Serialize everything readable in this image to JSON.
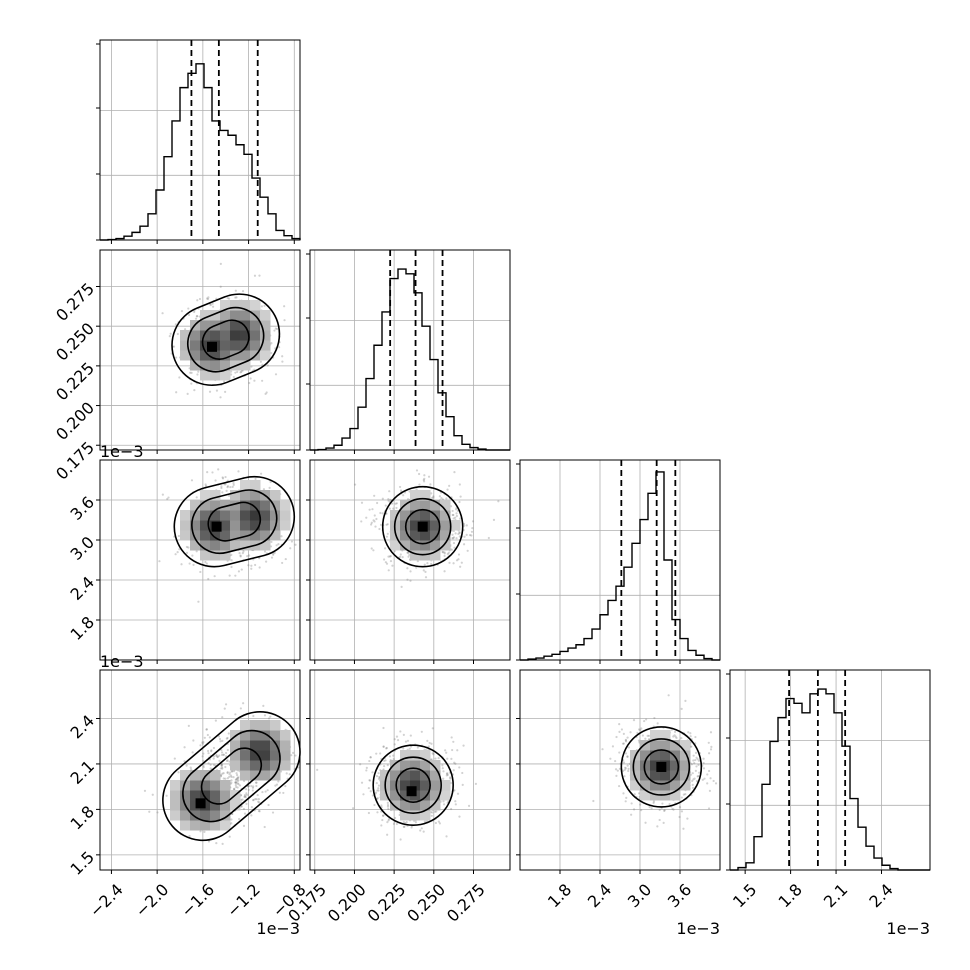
{
  "chart_data": {
    "type": "corner",
    "grid": true,
    "colors": {
      "frame": "#000000",
      "grid": "#b0b0b0",
      "points": "#7f7f7f",
      "line": "#000000"
    },
    "variables": [
      {
        "range": [
          -2.5,
          -0.75
        ],
        "ticks": [
          -2.4,
          -2.0,
          -1.6,
          -1.2,
          -0.8
        ],
        "tick_labels": [
          "−2.4",
          "−2.0",
          "−1.6",
          "−1.2",
          "−0.8"
        ],
        "offset": "1e−3",
        "quantiles": [
          -1.7,
          -1.46,
          -1.12
        ],
        "hist_max": 42,
        "hist": [
          0,
          0.1,
          0.3,
          0.8,
          1.6,
          2.9,
          5.5,
          10.5,
          17.5,
          25,
          32,
          35,
          37,
          32,
          25,
          23,
          22,
          20,
          18,
          13,
          9,
          5.5,
          2,
          0.9,
          0.3
        ]
      },
      {
        "range": [
          0.172,
          0.298
        ],
        "ticks": [
          0.175,
          0.2,
          0.225,
          0.25,
          0.275
        ],
        "tick_labels": [
          "0.175",
          "0.200",
          "0.225",
          "0.250",
          "0.275"
        ],
        "offset": "",
        "quantiles": [
          0.2225,
          0.2385,
          0.2555
        ],
        "hist_max": 42,
        "hist": [
          0,
          0.1,
          0.4,
          1,
          2.5,
          4.5,
          9,
          15,
          22,
          29,
          36,
          38,
          37,
          33,
          26,
          19,
          12,
          7,
          3,
          1.2,
          0.5,
          0.2,
          0,
          0,
          0
        ]
      },
      {
        "range": [
          1.2,
          4.2
        ],
        "ticks": [
          1.8,
          2.4,
          3.0,
          3.6
        ],
        "tick_labels": [
          "1.8",
          "2.4",
          "3.0",
          "3.6"
        ],
        "offset": "1e−3",
        "quantiles": [
          2.72,
          3.25,
          3.53
        ],
        "hist_max": 42,
        "hist": [
          0,
          0.2,
          0.4,
          0.8,
          1.2,
          1.8,
          2.5,
          3.2,
          4.5,
          6.5,
          9.5,
          12.5,
          15.5,
          19.5,
          24.5,
          29.5,
          35,
          39.5,
          21,
          8.5,
          4.5,
          2,
          1,
          0.3,
          0
        ]
      },
      {
        "range": [
          1.4,
          2.72
        ],
        "ticks": [
          1.5,
          1.8,
          2.1,
          2.4
        ],
        "tick_labels": [
          "1.5",
          "1.8",
          "2.1",
          "2.4"
        ],
        "offset": "1e−3",
        "quantiles": [
          1.79,
          1.98,
          2.16
        ],
        "hist_max": 42,
        "hist": [
          0,
          0.5,
          1.5,
          7,
          18,
          27,
          32,
          36,
          35,
          33,
          37,
          38,
          37,
          33,
          26,
          15,
          9,
          5,
          2.5,
          1,
          0.3,
          0,
          0,
          0,
          0
        ]
      }
    ],
    "pairs": [
      {
        "row": 1,
        "col": 0,
        "centers": [
          [
            -1.52,
            0.238
          ],
          [
            -1.28,
            0.245
          ]
        ],
        "peak": [
          -1.52,
          0.237
        ]
      },
      {
        "row": 2,
        "col": 0,
        "centers": [
          [
            -1.5,
            3.2
          ],
          [
            -1.15,
            3.35
          ]
        ],
        "peak": [
          -1.48,
          3.2
        ]
      },
      {
        "row": 2,
        "col": 1,
        "centers": [
          [
            0.243,
            3.2
          ]
        ],
        "peak": [
          0.243,
          3.2
        ]
      },
      {
        "row": 3,
        "col": 0,
        "centers": [
          [
            -1.6,
            1.86
          ],
          [
            -1.1,
            2.18
          ]
        ],
        "peak": [
          -1.62,
          1.84
        ]
      },
      {
        "row": 3,
        "col": 1,
        "centers": [
          [
            0.237,
            1.96
          ]
        ],
        "peak": [
          0.236,
          1.92
        ]
      },
      {
        "row": 3,
        "col": 2,
        "centers": [
          [
            3.32,
            2.08
          ]
        ],
        "peak": [
          3.32,
          2.08
        ]
      }
    ]
  }
}
